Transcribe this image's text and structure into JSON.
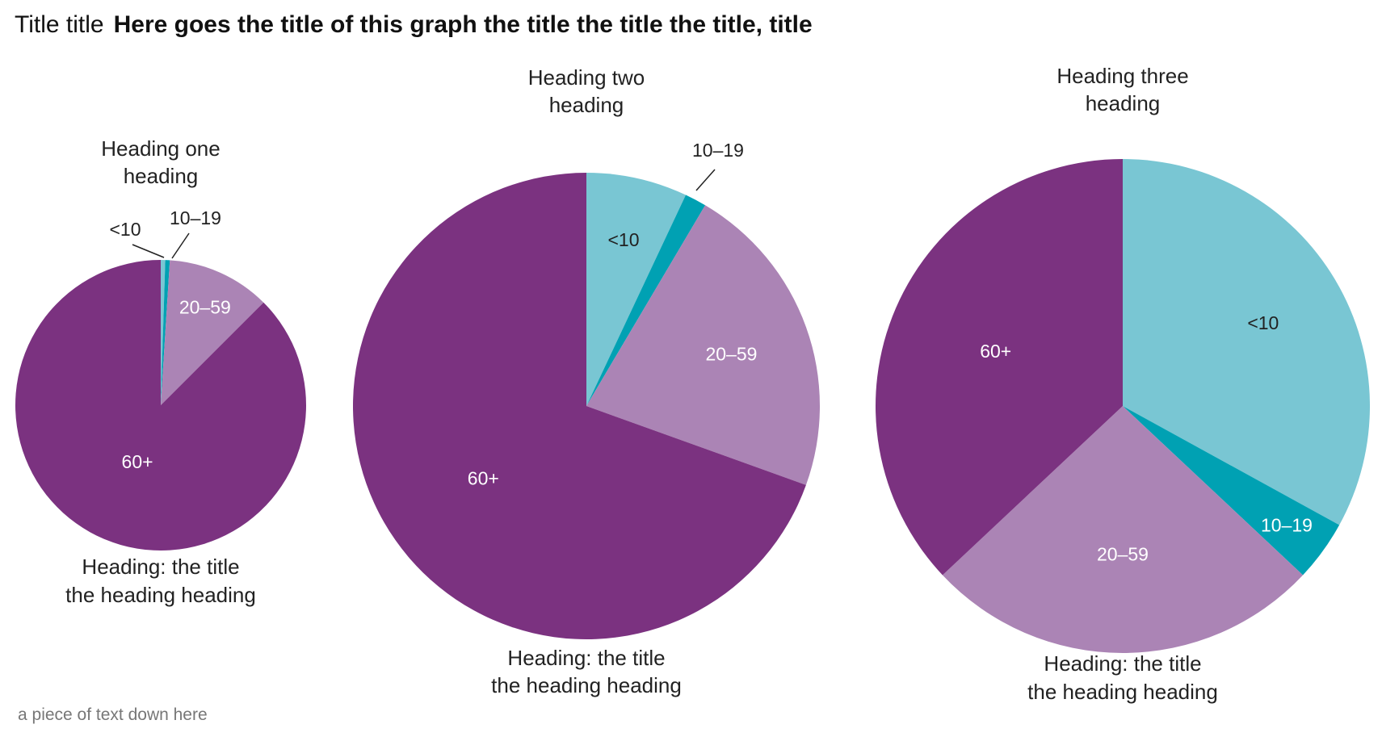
{
  "header": {
    "prefix": "Title title",
    "title": "Here goes the title of this graph the title the title the title, title"
  },
  "footnote": "a piece of text down here",
  "colors": {
    "<10": "#79c6d3",
    "10–19": "#00a1b3",
    "20–59": "#ab84b5",
    "60+": "#7b3280"
  },
  "chart_data": [
    {
      "type": "pie",
      "title": "Heading one heading",
      "subtitle": "Heading: the title the heading heading",
      "categories": [
        "<10",
        "10–19",
        "20–59",
        "60+"
      ],
      "values": [
        0.5,
        0.5,
        11.5,
        87.5
      ]
    },
    {
      "type": "pie",
      "title": "Heading two heading",
      "subtitle": "Heading: the title the heading heading",
      "categories": [
        "<10",
        "10–19",
        "20–59",
        "60+"
      ],
      "values": [
        7,
        1.5,
        22,
        69.5
      ]
    },
    {
      "type": "pie",
      "title": "Heading three heading",
      "subtitle": "Heading: the title the heading heading",
      "categories": [
        "<10",
        "10–19",
        "20–59",
        "60+"
      ],
      "values": [
        33,
        4,
        26,
        37
      ]
    }
  ]
}
